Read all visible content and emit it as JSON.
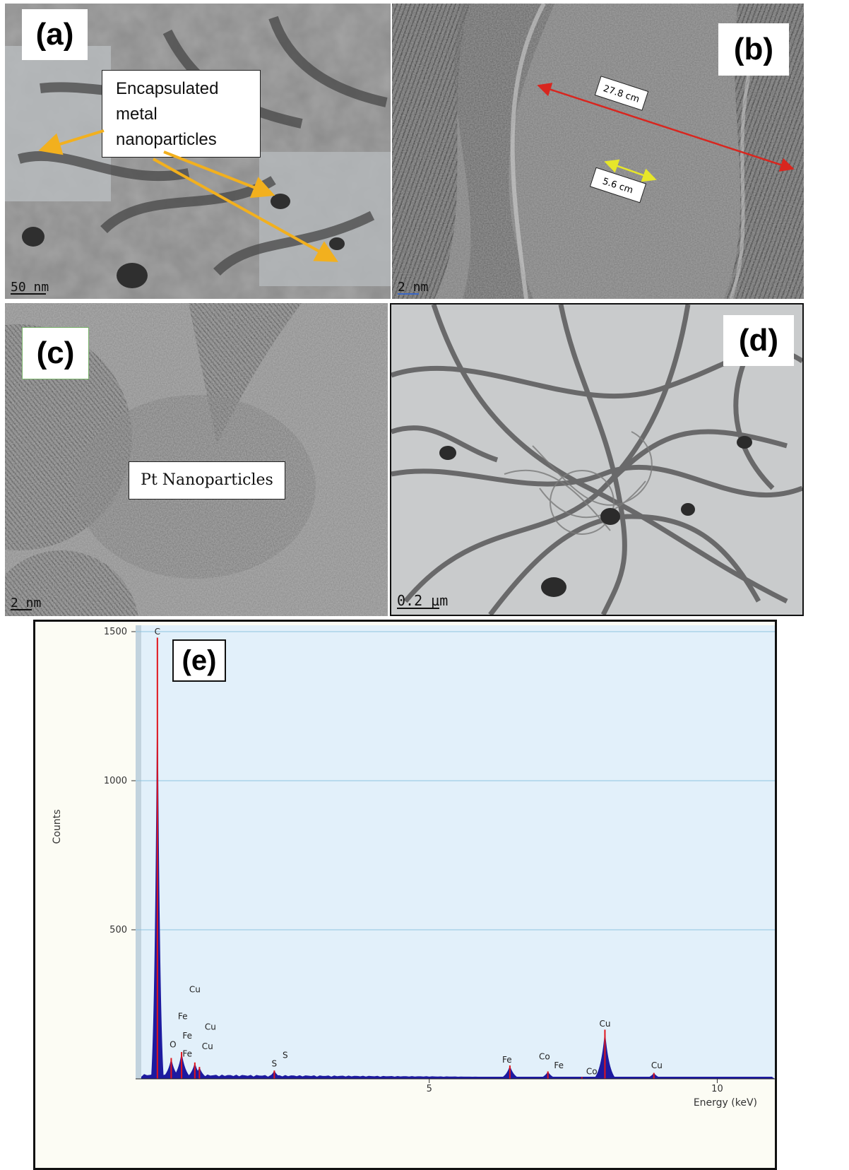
{
  "panel_a": {
    "label": "(a)",
    "callout": [
      "Encapsulated",
      "metal",
      "nanoparticles"
    ],
    "scalebar": "50 nm",
    "arrow_color": "#f2b01e"
  },
  "panel_b": {
    "label": "(b)",
    "measure_long": "27.8 cm",
    "measure_short": "5.6 cm",
    "scalebar": "2 nm",
    "long_color": "#d8261f",
    "short_color": "#e7e62a"
  },
  "panel_c": {
    "label": "(c)",
    "callout": "Pt Nanoparticles",
    "scalebar": "2 nm"
  },
  "panel_d": {
    "label": "(d)",
    "scalebar": "0.2 µm"
  },
  "panel_e": {
    "label": "(e)",
    "y_axis_label": "Counts",
    "x_axis_label": "Energy (keV)",
    "plot_bg": "#e2f0fa",
    "bar_color": "#1d1aa0",
    "marker_color": "#e0151c"
  },
  "chart_data": {
    "type": "bar",
    "xlabel": "Energy (keV)",
    "ylabel": "Counts",
    "xlim": [
      0,
      11
    ],
    "ylim": [
      0,
      1500
    ],
    "xticks": [
      "5",
      "10"
    ],
    "yticks": [
      "500",
      "1000",
      "1500"
    ],
    "grid": "horizontal",
    "peaks": [
      {
        "x": 0.28,
        "y": 1480
      },
      {
        "x": 0.52,
        "y": 70
      },
      {
        "x": 0.7,
        "y": 90
      },
      {
        "x": 0.93,
        "y": 55
      },
      {
        "x": 1.01,
        "y": 40
      },
      {
        "x": 2.31,
        "y": 28
      },
      {
        "x": 6.4,
        "y": 45
      },
      {
        "x": 7.06,
        "y": 25
      },
      {
        "x": 7.65,
        "y": 6
      },
      {
        "x": 8.05,
        "y": 165
      },
      {
        "x": 8.9,
        "y": 20
      }
    ],
    "element_labels": [
      {
        "text": "C",
        "x": 0.28,
        "y": 1490
      },
      {
        "text": "Cu",
        "x": 0.93,
        "y": 290
      },
      {
        "text": "Fe",
        "x": 0.72,
        "y": 200
      },
      {
        "text": "Cu",
        "x": 1.2,
        "y": 165
      },
      {
        "text": "Fe",
        "x": 0.8,
        "y": 135
      },
      {
        "text": "O",
        "x": 0.55,
        "y": 105
      },
      {
        "text": "Cu",
        "x": 1.15,
        "y": 100
      },
      {
        "text": "Fe",
        "x": 0.8,
        "y": 75
      },
      {
        "text": "S",
        "x": 2.5,
        "y": 70
      },
      {
        "text": "S",
        "x": 2.31,
        "y": 42
      },
      {
        "text": "Fe",
        "x": 6.35,
        "y": 55
      },
      {
        "text": "Co",
        "x": 7.0,
        "y": 65
      },
      {
        "text": "Fe",
        "x": 7.25,
        "y": 35
      },
      {
        "text": "Co",
        "x": 7.82,
        "y": 15
      },
      {
        "text": "Cu",
        "x": 8.05,
        "y": 175
      },
      {
        "text": "Cu",
        "x": 8.95,
        "y": 35
      }
    ]
  }
}
